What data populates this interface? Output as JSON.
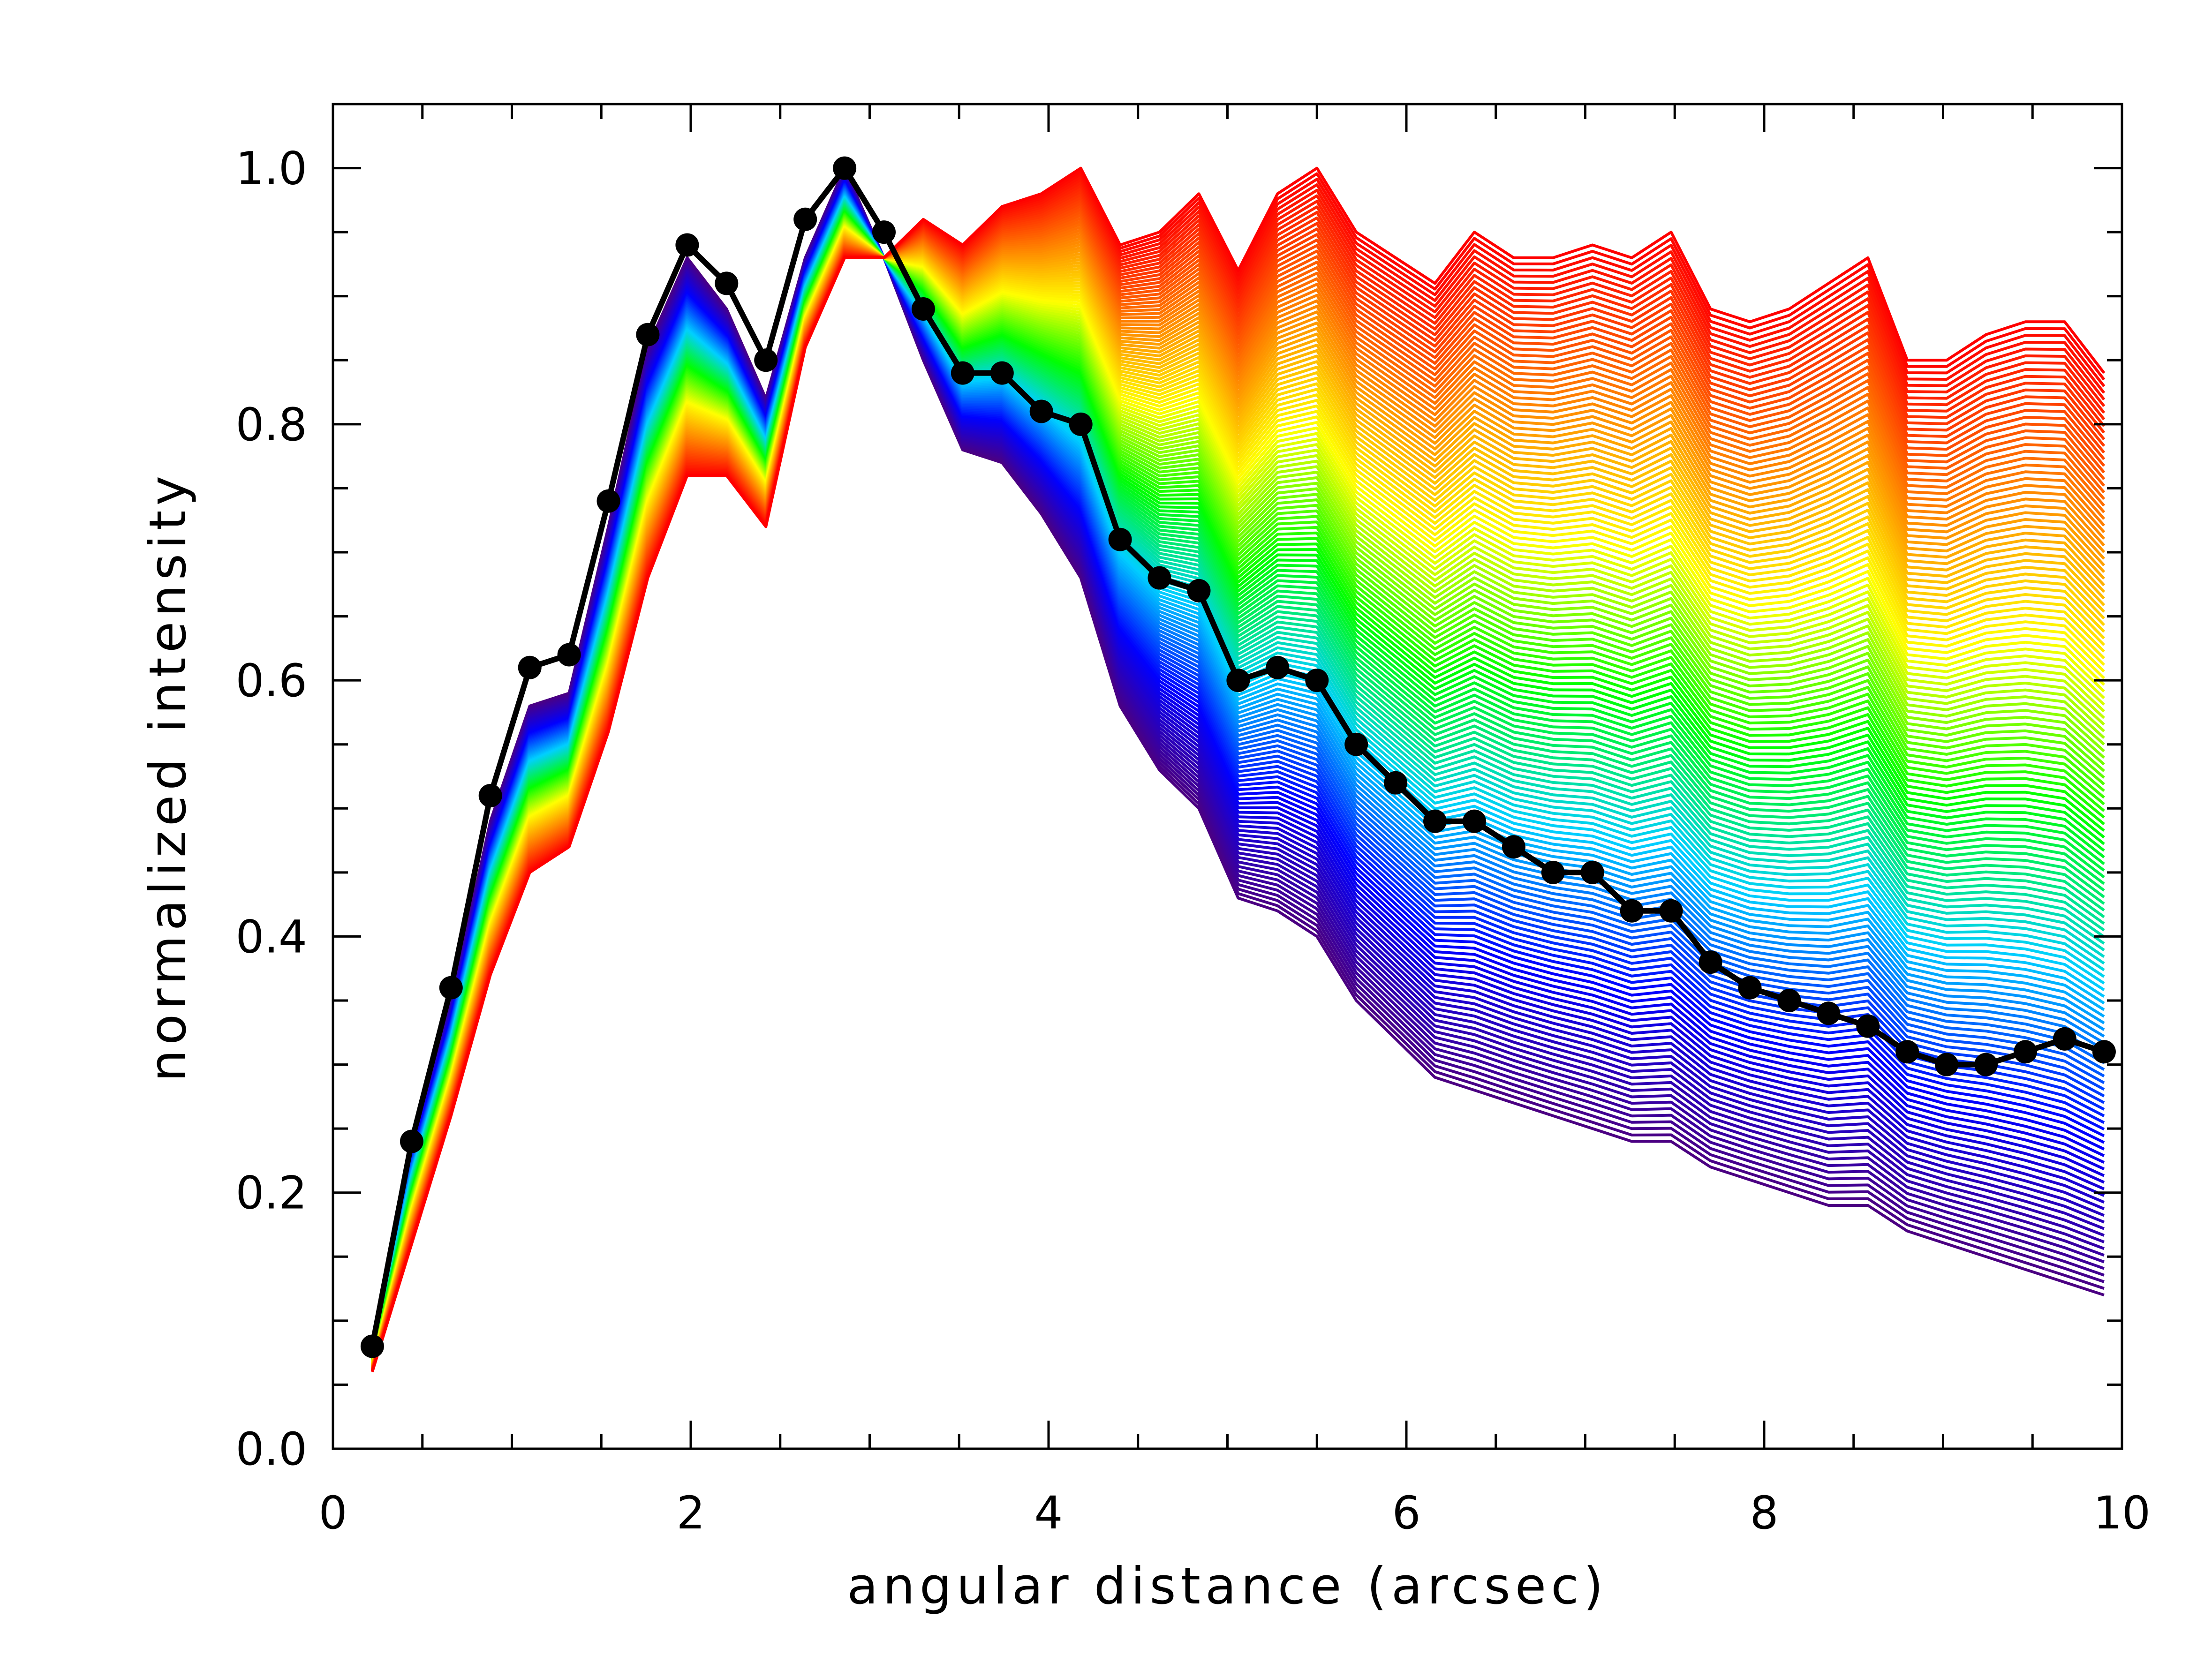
{
  "chart_data": {
    "type": "line",
    "title": "",
    "xlabel": "angular distance (arcsec)",
    "ylabel": "normalized intensity",
    "xlim": [
      0,
      10
    ],
    "ylim": [
      0.0,
      1.05
    ],
    "x_ticks": [
      0,
      2,
      4,
      6,
      8,
      10
    ],
    "x_tick_labels": [
      "0",
      "2",
      "4",
      "6",
      "8",
      "10"
    ],
    "x_minor_step": 0.5,
    "y_ticks": [
      0.0,
      0.2,
      0.4,
      0.6,
      0.8,
      1.0
    ],
    "y_tick_labels": [
      "0.0",
      "0.2",
      "0.4",
      "0.6",
      "0.8",
      "1.0"
    ],
    "y_minor_step": 0.05,
    "grid": false,
    "legend": "none",
    "colormap": [
      "#4b0082",
      "#0000ff",
      "#00d0ff",
      "#00ff00",
      "#ffff00",
      "#ff8000",
      "#ff0000"
    ],
    "x": [
      0.22,
      0.44,
      0.66,
      0.88,
      1.1,
      1.32,
      1.54,
      1.76,
      1.98,
      2.2,
      2.42,
      2.64,
      2.86,
      3.08,
      3.3,
      3.52,
      3.74,
      3.96,
      4.18,
      4.4,
      4.62,
      4.84,
      5.06,
      5.28,
      5.5,
      5.72,
      5.94,
      6.16,
      6.38,
      6.6,
      6.82,
      7.04,
      7.26,
      7.48,
      7.7,
      7.92,
      8.14,
      8.36,
      8.58,
      8.8,
      9.02,
      9.24,
      9.46,
      9.68,
      9.9
    ],
    "series": [
      {
        "style": "lower-envelope (violet)",
        "values": [
          0.08,
          0.24,
          0.35,
          0.49,
          0.58,
          0.59,
          0.72,
          0.86,
          0.93,
          0.89,
          0.82,
          0.93,
          1.0,
          0.93,
          0.85,
          0.78,
          0.77,
          0.73,
          0.68,
          0.58,
          0.53,
          0.5,
          0.43,
          0.42,
          0.4,
          0.35,
          0.32,
          0.29,
          0.28,
          0.27,
          0.26,
          0.25,
          0.24,
          0.24,
          0.22,
          0.21,
          0.2,
          0.19,
          0.19,
          0.17,
          0.16,
          0.15,
          0.14,
          0.13,
          0.12
        ]
      },
      {
        "style": "upper-envelope (red)",
        "values": [
          0.06,
          0.16,
          0.26,
          0.37,
          0.45,
          0.47,
          0.56,
          0.68,
          0.76,
          0.76,
          0.72,
          0.86,
          0.93,
          0.93,
          0.96,
          0.94,
          0.97,
          0.98,
          1.0,
          0.94,
          0.95,
          0.98,
          0.92,
          0.98,
          1.0,
          0.95,
          0.93,
          0.91,
          0.95,
          0.93,
          0.93,
          0.94,
          0.93,
          0.95,
          0.89,
          0.88,
          0.89,
          0.91,
          0.93,
          0.85,
          0.85,
          0.87,
          0.88,
          0.88,
          0.84
        ]
      },
      {
        "style": "mean (black, dots)",
        "values": [
          0.08,
          0.24,
          0.36,
          0.51,
          0.61,
          0.62,
          0.74,
          0.87,
          0.94,
          0.91,
          0.85,
          0.96,
          1.0,
          0.95,
          0.89,
          0.84,
          0.84,
          0.81,
          0.8,
          0.71,
          0.68,
          0.67,
          0.6,
          0.61,
          0.6,
          0.55,
          0.52,
          0.49,
          0.49,
          0.47,
          0.45,
          0.45,
          0.42,
          0.42,
          0.38,
          0.36,
          0.35,
          0.34,
          0.33,
          0.31,
          0.3,
          0.3,
          0.31,
          0.32,
          0.31
        ]
      }
    ]
  }
}
